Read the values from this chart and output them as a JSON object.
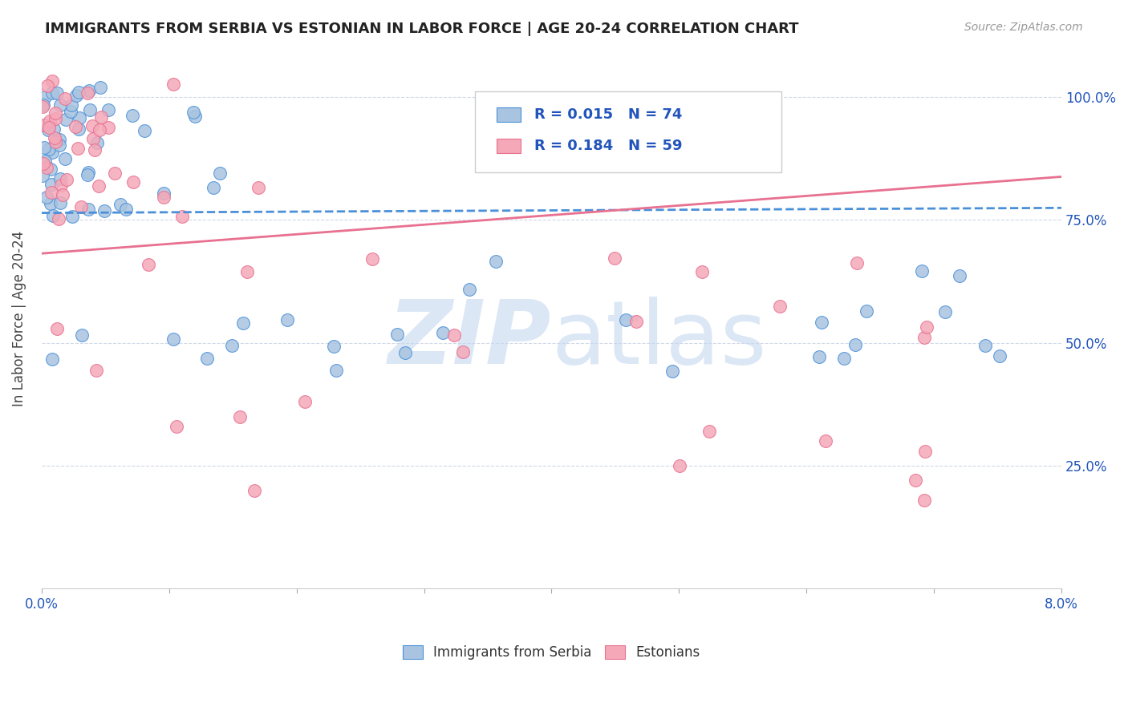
{
  "title": "IMMIGRANTS FROM SERBIA VS ESTONIAN IN LABOR FORCE | AGE 20-24 CORRELATION CHART",
  "source": "Source: ZipAtlas.com",
  "ylabel": "In Labor Force | Age 20-24",
  "xmin": 0.0,
  "xmax": 0.08,
  "ymin": 0.0,
  "ymax": 1.1,
  "color_serbia": "#a8c4e0",
  "color_estonian": "#f4a8b8",
  "color_line_serbia": "#4a90d9",
  "color_line_estonian": "#e87090",
  "color_text_blue": "#2255bb"
}
